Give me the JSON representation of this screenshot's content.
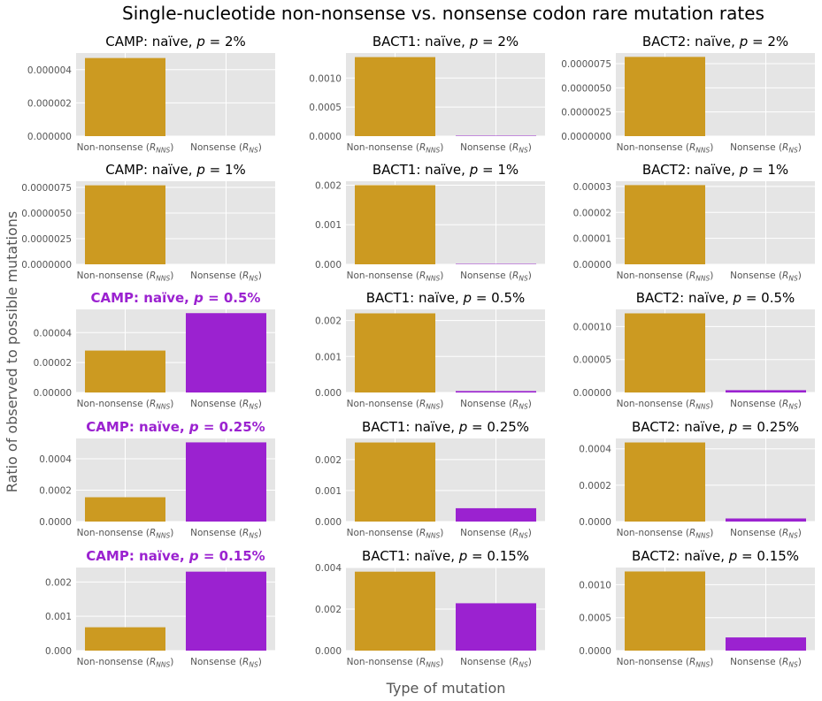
{
  "figure": {
    "suptitle": "Single-nucleotide non-nonsense vs. nonsense codon rare mutation rates",
    "xlabel": "Type of mutation",
    "ylabel": "Ratio of observed to possible mutations"
  },
  "colors": {
    "non_nonsense": "#cc9a21",
    "nonsense": "#9b22d0",
    "panel_bg": "#e5e5e5",
    "grid": "#ffffff",
    "highlight_title": "#9b22d0"
  },
  "chart_data": [
    {
      "type": "bar",
      "gene": "CAMP",
      "title": "CAMP: naïve, p = 2%",
      "title_prefix": "CAMP: naïve, ",
      "title_p": "p",
      "title_suffix": " = 2%",
      "highlight": false,
      "categories": [
        "Non-nonsense (R_NNS)",
        "Nonsense (R_NS)"
      ],
      "values": [
        4.7e-06,
        0
      ],
      "ylim": [
        0,
        5e-06
      ],
      "yticks": [
        0,
        2e-06,
        4e-06
      ],
      "yticklabels": [
        "0.000000",
        "0.000002",
        "0.000004"
      ]
    },
    {
      "type": "bar",
      "gene": "BACT1",
      "title": "BACT1: naïve, p = 2%",
      "title_prefix": "BACT1: naïve, ",
      "title_p": "p",
      "title_suffix": " = 2%",
      "highlight": false,
      "categories": [
        "Non-nonsense (R_NNS)",
        "Nonsense (R_NS)"
      ],
      "values": [
        0.00136,
        7e-06
      ],
      "ylim": [
        0,
        0.00143
      ],
      "yticks": [
        0,
        0.0005,
        0.001
      ],
      "yticklabels": [
        "0.0000",
        "0.0005",
        "0.0010"
      ]
    },
    {
      "type": "bar",
      "gene": "BACT2",
      "title": "BACT2: naïve, p = 2%",
      "title_prefix": "BACT2: naïve, ",
      "title_p": "p",
      "title_suffix": " = 2%",
      "highlight": false,
      "categories": [
        "Non-nonsense (R_NNS)",
        "Nonsense (R_NS)"
      ],
      "values": [
        8.2e-06,
        0
      ],
      "ylim": [
        0,
        8.6e-06
      ],
      "yticks": [
        0,
        2.5e-06,
        5e-06,
        7.5e-06
      ],
      "yticklabels": [
        "0.0000000",
        "0.0000025",
        "0.0000050",
        "0.0000075"
      ]
    },
    {
      "type": "bar",
      "gene": "CAMP",
      "title": "CAMP: naïve, p = 1%",
      "title_prefix": "CAMP: naïve, ",
      "title_p": "p",
      "title_suffix": " = 1%",
      "highlight": false,
      "categories": [
        "Non-nonsense (R_NNS)",
        "Nonsense (R_NS)"
      ],
      "values": [
        7.7e-06,
        0
      ],
      "ylim": [
        0,
        8.1e-06
      ],
      "yticks": [
        0,
        2.5e-06,
        5e-06,
        7.5e-06
      ],
      "yticklabels": [
        "0.0000000",
        "0.0000025",
        "0.0000050",
        "0.0000075"
      ]
    },
    {
      "type": "bar",
      "gene": "BACT1",
      "title": "BACT1: naïve, p = 1%",
      "title_prefix": "BACT1: naïve, ",
      "title_p": "p",
      "title_suffix": " = 1%",
      "highlight": false,
      "categories": [
        "Non-nonsense (R_NNS)",
        "Nonsense (R_NS)"
      ],
      "values": [
        0.002,
        1e-05
      ],
      "ylim": [
        0,
        0.0021
      ],
      "yticks": [
        0,
        0.001,
        0.002
      ],
      "yticklabels": [
        "0.000",
        "0.001",
        "0.002"
      ]
    },
    {
      "type": "bar",
      "gene": "BACT2",
      "title": "BACT2: naïve, p = 1%",
      "title_prefix": "BACT2: naïve, ",
      "title_p": "p",
      "title_suffix": " = 1%",
      "highlight": false,
      "categories": [
        "Non-nonsense (R_NNS)",
        "Nonsense (R_NS)"
      ],
      "values": [
        3.05e-05,
        0
      ],
      "ylim": [
        0,
        3.2e-05
      ],
      "yticks": [
        0,
        1e-05,
        2e-05,
        3e-05
      ],
      "yticklabels": [
        "0.00000",
        "0.00001",
        "0.00002",
        "0.00003"
      ]
    },
    {
      "type": "bar",
      "gene": "CAMP",
      "title": "CAMP: naïve, p = 0.5%",
      "title_prefix": "CAMP: naïve, ",
      "title_p": "p",
      "title_suffix": " = 0.5%",
      "highlight": true,
      "categories": [
        "Non-nonsense (R_NNS)",
        "Nonsense (R_NS)"
      ],
      "values": [
        2.8e-05,
        5.3e-05
      ],
      "ylim": [
        0,
        5.55e-05
      ],
      "yticks": [
        0,
        2e-05,
        4e-05
      ],
      "yticklabels": [
        "0.00000",
        "0.00002",
        "0.00004"
      ]
    },
    {
      "type": "bar",
      "gene": "BACT1",
      "title": "BACT1: naïve, p = 0.5%",
      "title_prefix": "BACT1: naïve, ",
      "title_p": "p",
      "title_suffix": " = 0.5%",
      "highlight": false,
      "categories": [
        "Non-nonsense (R_NNS)",
        "Nonsense (R_NS)"
      ],
      "values": [
        0.0022,
        4e-05
      ],
      "ylim": [
        0,
        0.00231
      ],
      "yticks": [
        0,
        0.001,
        0.002
      ],
      "yticklabels": [
        "0.000",
        "0.001",
        "0.002"
      ]
    },
    {
      "type": "bar",
      "gene": "BACT2",
      "title": "BACT2: naïve, p = 0.5%",
      "title_prefix": "BACT2: naïve, ",
      "title_p": "p",
      "title_suffix": " = 0.5%",
      "highlight": false,
      "categories": [
        "Non-nonsense (R_NNS)",
        "Nonsense (R_NS)"
      ],
      "values": [
        0.00012,
        3.5e-06
      ],
      "ylim": [
        0,
        0.000126
      ],
      "yticks": [
        0,
        5e-05,
        0.0001
      ],
      "yticklabels": [
        "0.00000",
        "0.00005",
        "0.00010"
      ]
    },
    {
      "type": "bar",
      "gene": "CAMP",
      "title": "CAMP: naïve, p = 0.25%",
      "title_prefix": "CAMP: naïve, ",
      "title_p": "p",
      "title_suffix": " = 0.25%",
      "highlight": true,
      "categories": [
        "Non-nonsense (R_NNS)",
        "Nonsense (R_NS)"
      ],
      "values": [
        0.000155,
        0.000505
      ],
      "ylim": [
        0,
        0.00053
      ],
      "yticks": [
        0,
        0.0002,
        0.0004
      ],
      "yticklabels": [
        "0.0000",
        "0.0002",
        "0.0004"
      ]
    },
    {
      "type": "bar",
      "gene": "BACT1",
      "title": "BACT1: naïve, p = 0.25%",
      "title_prefix": "BACT1: naïve, ",
      "title_p": "p",
      "title_suffix": " = 0.25%",
      "highlight": false,
      "categories": [
        "Non-nonsense (R_NNS)",
        "Nonsense (R_NS)"
      ],
      "values": [
        0.00255,
        0.00043
      ],
      "ylim": [
        0,
        0.00268
      ],
      "yticks": [
        0,
        0.001,
        0.002
      ],
      "yticklabels": [
        "0.000",
        "0.001",
        "0.002"
      ]
    },
    {
      "type": "bar",
      "gene": "BACT2",
      "title": "BACT2: naïve, p = 0.25%",
      "title_prefix": "BACT2: naïve, ",
      "title_p": "p",
      "title_suffix": " = 0.25%",
      "highlight": false,
      "categories": [
        "Non-nonsense (R_NNS)",
        "Nonsense (R_NS)"
      ],
      "values": [
        0.000435,
        1.7e-05
      ],
      "ylim": [
        0,
        0.000457
      ],
      "yticks": [
        0,
        0.0002,
        0.0004
      ],
      "yticklabels": [
        "0.0000",
        "0.0002",
        "0.0004"
      ]
    },
    {
      "type": "bar",
      "gene": "CAMP",
      "title": "CAMP: naïve, p = 0.15%",
      "title_prefix": "CAMP: naïve, ",
      "title_p": "p",
      "title_suffix": " = 0.15%",
      "highlight": true,
      "categories": [
        "Non-nonsense (R_NNS)",
        "Nonsense (R_NS)"
      ],
      "values": [
        0.00068,
        0.0023
      ],
      "ylim": [
        0,
        0.00242
      ],
      "yticks": [
        0,
        0.001,
        0.002
      ],
      "yticklabels": [
        "0.000",
        "0.001",
        "0.002"
      ]
    },
    {
      "type": "bar",
      "gene": "BACT1",
      "title": "BACT1: naïve, p = 0.15%",
      "title_prefix": "BACT1: naïve, ",
      "title_p": "p",
      "title_suffix": " = 0.15%",
      "highlight": false,
      "categories": [
        "Non-nonsense (R_NNS)",
        "Nonsense (R_NS)"
      ],
      "values": [
        0.0038,
        0.00228
      ],
      "ylim": [
        0,
        0.004
      ],
      "yticks": [
        0,
        0.002,
        0.004
      ],
      "yticklabels": [
        "0.000",
        "0.002",
        "0.004"
      ]
    },
    {
      "type": "bar",
      "gene": "BACT2",
      "title": "BACT2: naïve, p = 0.15%",
      "title_prefix": "BACT2: naïve, ",
      "title_p": "p",
      "title_suffix": " = 0.15%",
      "highlight": false,
      "categories": [
        "Non-nonsense (R_NNS)",
        "Nonsense (R_NS)"
      ],
      "values": [
        0.0012,
        0.0002
      ],
      "ylim": [
        0,
        0.00126
      ],
      "yticks": [
        0,
        0.0005,
        0.001
      ],
      "yticklabels": [
        "0.0000",
        "0.0005",
        "0.0010"
      ]
    }
  ]
}
